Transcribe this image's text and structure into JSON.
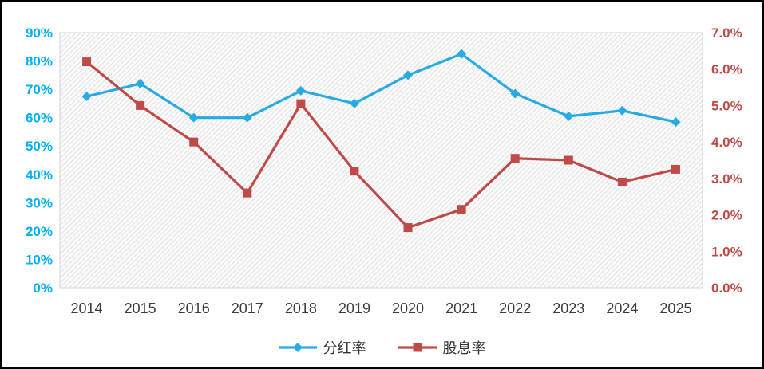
{
  "chart_data": {
    "type": "line",
    "title": "",
    "categories": [
      "2014",
      "2015",
      "2016",
      "2017",
      "2018",
      "2019",
      "2020",
      "2021",
      "2022",
      "2023",
      "2024",
      "2025"
    ],
    "series": [
      {
        "name": "分红率",
        "axis": "left",
        "color": "#29ABE2",
        "marker": "diamond",
        "values": [
          67.5,
          72.0,
          60.0,
          60.0,
          69.5,
          65.0,
          75.0,
          82.5,
          68.5,
          60.5,
          62.5,
          58.5
        ]
      },
      {
        "name": "股息率",
        "axis": "right",
        "color": "#BE4B48",
        "marker": "square",
        "values": [
          6.2,
          5.0,
          4.0,
          2.6,
          5.05,
          3.2,
          1.65,
          2.15,
          3.55,
          3.5,
          2.9,
          3.25
        ]
      }
    ],
    "left_axis": {
      "min": 0,
      "max": 90,
      "step": 10,
      "color": "#00B0F0",
      "tick_labels": [
        "0%",
        "10%",
        "20%",
        "30%",
        "40%",
        "50%",
        "60%",
        "70%",
        "80%",
        "90%"
      ]
    },
    "right_axis": {
      "min": 0,
      "max": 7,
      "step": 1,
      "color": "#BE4B48",
      "tick_labels": [
        "0.0%",
        "1.0%",
        "2.0%",
        "3.0%",
        "4.0%",
        "5.0%",
        "6.0%",
        "7.0%"
      ]
    },
    "x_axis": {
      "color": "#3B3B3B",
      "labels": [
        "2014",
        "2015",
        "2016",
        "2017",
        "2018",
        "2019",
        "2020",
        "2021",
        "2022",
        "2023",
        "2024",
        "2025"
      ]
    },
    "legend_position": "bottom",
    "grid": false,
    "plot_background": "diagonal-hatch"
  }
}
